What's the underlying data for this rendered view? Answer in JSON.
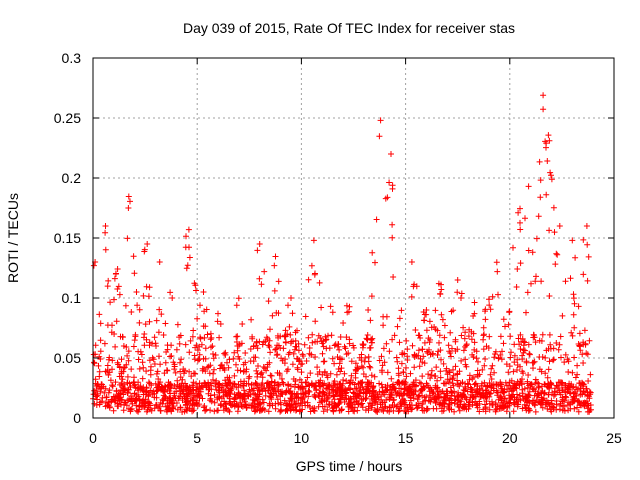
{
  "chart_data": {
    "type": "scatter",
    "title": "Day 039 of 2015, Rate Of TEC Index for receiver stas",
    "xlabel": "GPS time / hours",
    "ylabel": "ROTI / TECUs",
    "xlim": [
      0,
      25
    ],
    "ylim": [
      0,
      0.3
    ],
    "xticks": [
      0,
      5,
      10,
      15,
      20,
      25
    ],
    "xtick_labels": [
      "0",
      "5",
      "10",
      "15",
      "20",
      "25"
    ],
    "yticks": [
      0,
      0.05,
      0.1,
      0.15,
      0.2,
      0.25,
      0.3
    ],
    "ytick_labels": [
      "0",
      "0.05",
      "0.1",
      "0.15",
      "0.2",
      "0.25",
      "0.3"
    ],
    "grid": true,
    "marker": "plus",
    "series": [
      {
        "name": "ROTI",
        "color": "#ff0000",
        "x_range": [
          0,
          23.9
        ],
        "peaks": [
          {
            "x": 0.1,
            "y": 0.13
          },
          {
            "x": 0.6,
            "y": 0.16
          },
          {
            "x": 1.1,
            "y": 0.12
          },
          {
            "x": 1.7,
            "y": 0.175
          },
          {
            "x": 2.6,
            "y": 0.145
          },
          {
            "x": 3.2,
            "y": 0.13
          },
          {
            "x": 3.8,
            "y": 0.1
          },
          {
            "x": 4.6,
            "y": 0.157
          },
          {
            "x": 5.3,
            "y": 0.105
          },
          {
            "x": 6.0,
            "y": 0.087
          },
          {
            "x": 6.9,
            "y": 0.094
          },
          {
            "x": 8.0,
            "y": 0.145
          },
          {
            "x": 8.7,
            "y": 0.127
          },
          {
            "x": 9.5,
            "y": 0.1
          },
          {
            "x": 10.6,
            "y": 0.148
          },
          {
            "x": 11.4,
            "y": 0.093
          },
          {
            "x": 12.2,
            "y": 0.088
          },
          {
            "x": 13.2,
            "y": 0.09
          },
          {
            "x": 13.8,
            "y": 0.248
          },
          {
            "x": 14.3,
            "y": 0.22
          },
          {
            "x": 15.3,
            "y": 0.13
          },
          {
            "x": 16.0,
            "y": 0.09
          },
          {
            "x": 16.6,
            "y": 0.112
          },
          {
            "x": 17.5,
            "y": 0.115
          },
          {
            "x": 18.3,
            "y": 0.087
          },
          {
            "x": 19.0,
            "y": 0.099
          },
          {
            "x": 19.4,
            "y": 0.122
          },
          {
            "x": 20.4,
            "y": 0.171
          },
          {
            "x": 20.9,
            "y": 0.193
          },
          {
            "x": 21.6,
            "y": 0.269
          },
          {
            "x": 21.9,
            "y": 0.231
          },
          {
            "x": 22.4,
            "y": 0.16
          },
          {
            "x": 23.0,
            "y": 0.148
          },
          {
            "x": 23.7,
            "y": 0.16
          }
        ]
      }
    ]
  }
}
